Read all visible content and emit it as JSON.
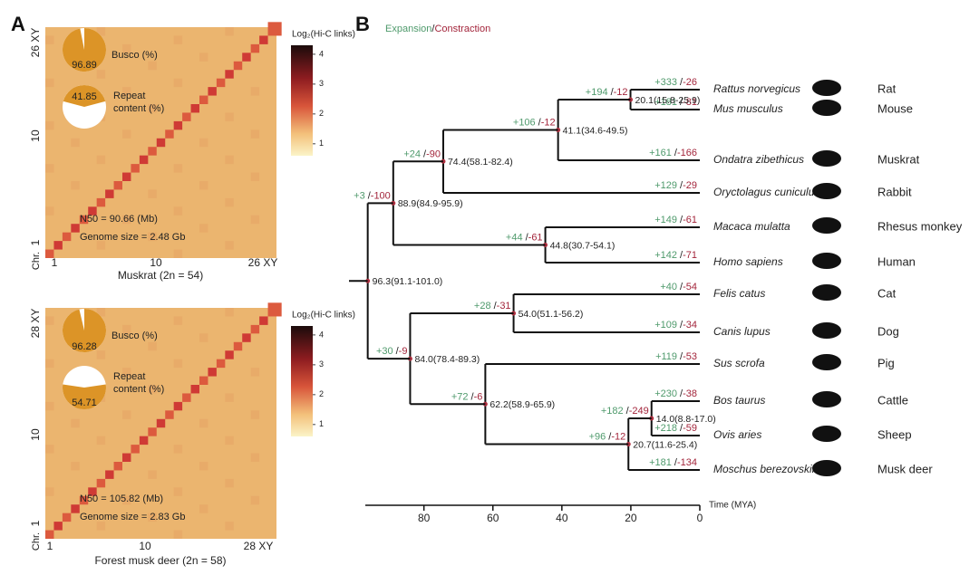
{
  "panel_a": {
    "letter": "A",
    "maps": [
      {
        "caption": "Muskrat (2n = 54)",
        "y_labels": [
          "26 XY",
          "10",
          "1"
        ],
        "x_labels": [
          "1",
          "10",
          "26 XY"
        ],
        "chr_label": "Chr.",
        "busco": {
          "label": "Busco (%)",
          "value": 96.89
        },
        "repeat": {
          "label_lines": [
            "Repeat",
            "content (%)"
          ],
          "value": 41.85
        },
        "n50": "N50 = 90.66 (Mb)",
        "genome_size": "Genome size = 2.48 Gb",
        "colorbar": {
          "title": "Log₂(Hi-C links)",
          "ticks": [
            1,
            2,
            3,
            4
          ]
        }
      },
      {
        "caption": "Forest musk deer (2n = 58)",
        "y_labels": [
          "28 XY",
          "10",
          "1"
        ],
        "x_labels": [
          "1",
          "10",
          "28 XY"
        ],
        "chr_label": "Chr.",
        "busco": {
          "label": "Busco (%)",
          "value": 96.28
        },
        "repeat": {
          "label_lines": [
            "Repeat",
            "content (%)"
          ],
          "value": 54.71
        },
        "n50": "N50 = 105.82 (Mb)",
        "genome_size": "Genome size = 2.83 Gb",
        "colorbar": {
          "title": "Log₂(Hi-C links)",
          "ticks": [
            1,
            2,
            3,
            4
          ]
        }
      }
    ]
  },
  "panel_b": {
    "letter": "B",
    "legend": {
      "expansion": "Expansion",
      "separator": "/",
      "contraction": "Constraction"
    },
    "axis": {
      "label": "Time (MYA)",
      "xlim": [
        97,
        0
      ],
      "ticks": [
        80,
        60,
        40,
        20,
        0
      ]
    },
    "tree": {
      "age": 96.3,
      "label": "96.3(91.1-101.0)",
      "children": [
        {
          "age": 88.9,
          "label": "88.9(84.9-95.9)",
          "gain": "+3",
          "loss": "-100",
          "children": [
            {
              "age": 74.4,
              "label": "74.4(58.1-82.4)",
              "gain": "+24",
              "loss": "-90",
              "children": [
                {
                  "age": 41.1,
                  "label": "41.1(34.6-49.5)",
                  "gain": "+106",
                  "loss": "-12",
                  "children": [
                    {
                      "age": 20.1,
                      "label": "20.1(15.8-25.9)",
                      "gain": "+194",
                      "loss": "-12",
                      "children": [
                        {
                          "latin": "Rattus norvegicus",
                          "common": "Rat",
                          "gain": "+333",
                          "loss": "-26"
                        },
                        {
                          "latin": "Mus musculus",
                          "common": "Mouse",
                          "gain": "+181",
                          "loss": "-81"
                        }
                      ]
                    },
                    {
                      "latin": "Ondatra zibethicus",
                      "common": "Muskrat",
                      "gain": "+161",
                      "loss": "-166"
                    }
                  ]
                },
                {
                  "latin": "Oryctolagus cuniculus",
                  "common": "Rabbit",
                  "gain": "+129",
                  "loss": "-29"
                }
              ]
            },
            {
              "age": 44.8,
              "label": "44.8(30.7-54.1)",
              "gain": "+44",
              "loss": "-61",
              "children": [
                {
                  "latin": "Macaca mulatta",
                  "common": "Rhesus monkey",
                  "gain": "+149",
                  "loss": "-61"
                },
                {
                  "latin": "Homo sapiens",
                  "common": "Human",
                  "gain": "+142",
                  "loss": "-71"
                }
              ]
            }
          ]
        },
        {
          "age": 84.0,
          "label": "84.0(78.4-89.3)",
          "gain": "+30",
          "loss": "-9",
          "children": [
            {
              "age": 54.0,
              "label": "54.0(51.1-56.2)",
              "gain": "+28",
              "loss": "-31",
              "children": [
                {
                  "latin": "Felis catus",
                  "common": "Cat",
                  "gain": "+40",
                  "loss": "-54"
                },
                {
                  "latin": "Canis lupus",
                  "common": "Dog",
                  "gain": "+109",
                  "loss": "-34"
                }
              ]
            },
            {
              "age": 62.2,
              "label": "62.2(58.9-65.9)",
              "gain": "+72",
              "loss": "-6",
              "children": [
                {
                  "latin": "Sus scrofa",
                  "common": "Pig",
                  "gain": "+119",
                  "loss": "-53"
                },
                {
                  "age": 20.7,
                  "label": "20.7(11.6-25.4)",
                  "gain": "+96",
                  "loss": "-12",
                  "children": [
                    {
                      "age": 14.0,
                      "label": "14.0(8.8-17.0)",
                      "gain": "+182",
                      "loss": "-249",
                      "children": [
                        {
                          "latin": "Bos taurus",
                          "common": "Cattle",
                          "gain": "+230",
                          "loss": "-38"
                        },
                        {
                          "latin": "Ovis aries",
                          "common": "Sheep",
                          "gain": "+218",
                          "loss": "-59"
                        }
                      ]
                    },
                    {
                      "latin": "Moschus berezovskii",
                      "common": "Musk deer",
                      "gain": "+181",
                      "loss": "-134"
                    }
                  ]
                }
              ]
            }
          ]
        }
      ]
    }
  }
}
